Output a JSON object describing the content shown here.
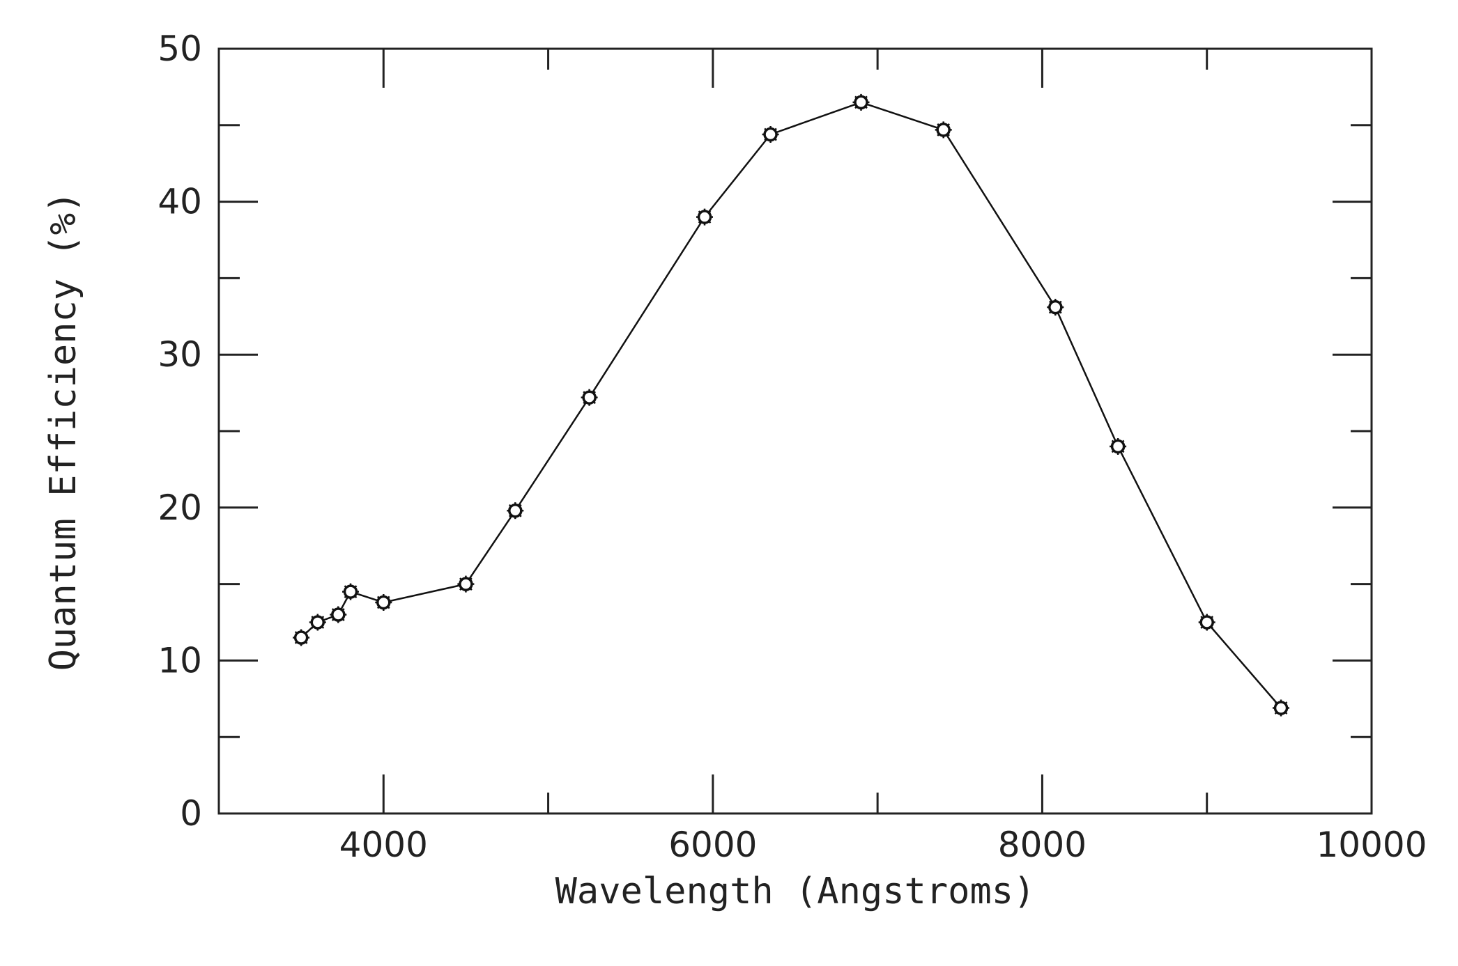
{
  "chart_data": {
    "type": "line",
    "xlabel": "Wavelength (Angstroms)",
    "ylabel": "Quantum Efficiency (%)",
    "xlim": [
      3000,
      10000
    ],
    "ylim": [
      0,
      50
    ],
    "x_ticks": [
      4000,
      6000,
      8000,
      10000
    ],
    "y_ticks": [
      0,
      10,
      20,
      30,
      40,
      50
    ],
    "x_ticks_minor": [
      4000,
      5000,
      6000,
      7000,
      8000,
      9000
    ],
    "y_ticks_minor": [
      5,
      10,
      15,
      20,
      25,
      30,
      35,
      40,
      45
    ],
    "grid": false,
    "legend": "none",
    "line_color": "#111111",
    "series": [
      {
        "x": [
          3500,
          3600,
          3725,
          3800,
          4000,
          4500,
          4800,
          5250,
          5950,
          6350,
          6900,
          7400,
          8080,
          8460,
          9000,
          9450
        ],
        "y": [
          11.5,
          12.5,
          13.0,
          14.5,
          13.8,
          15.0,
          19.8,
          27.2,
          39.0,
          44.4,
          46.5,
          44.7,
          33.1,
          24.0,
          12.5,
          6.9
        ]
      }
    ]
  }
}
